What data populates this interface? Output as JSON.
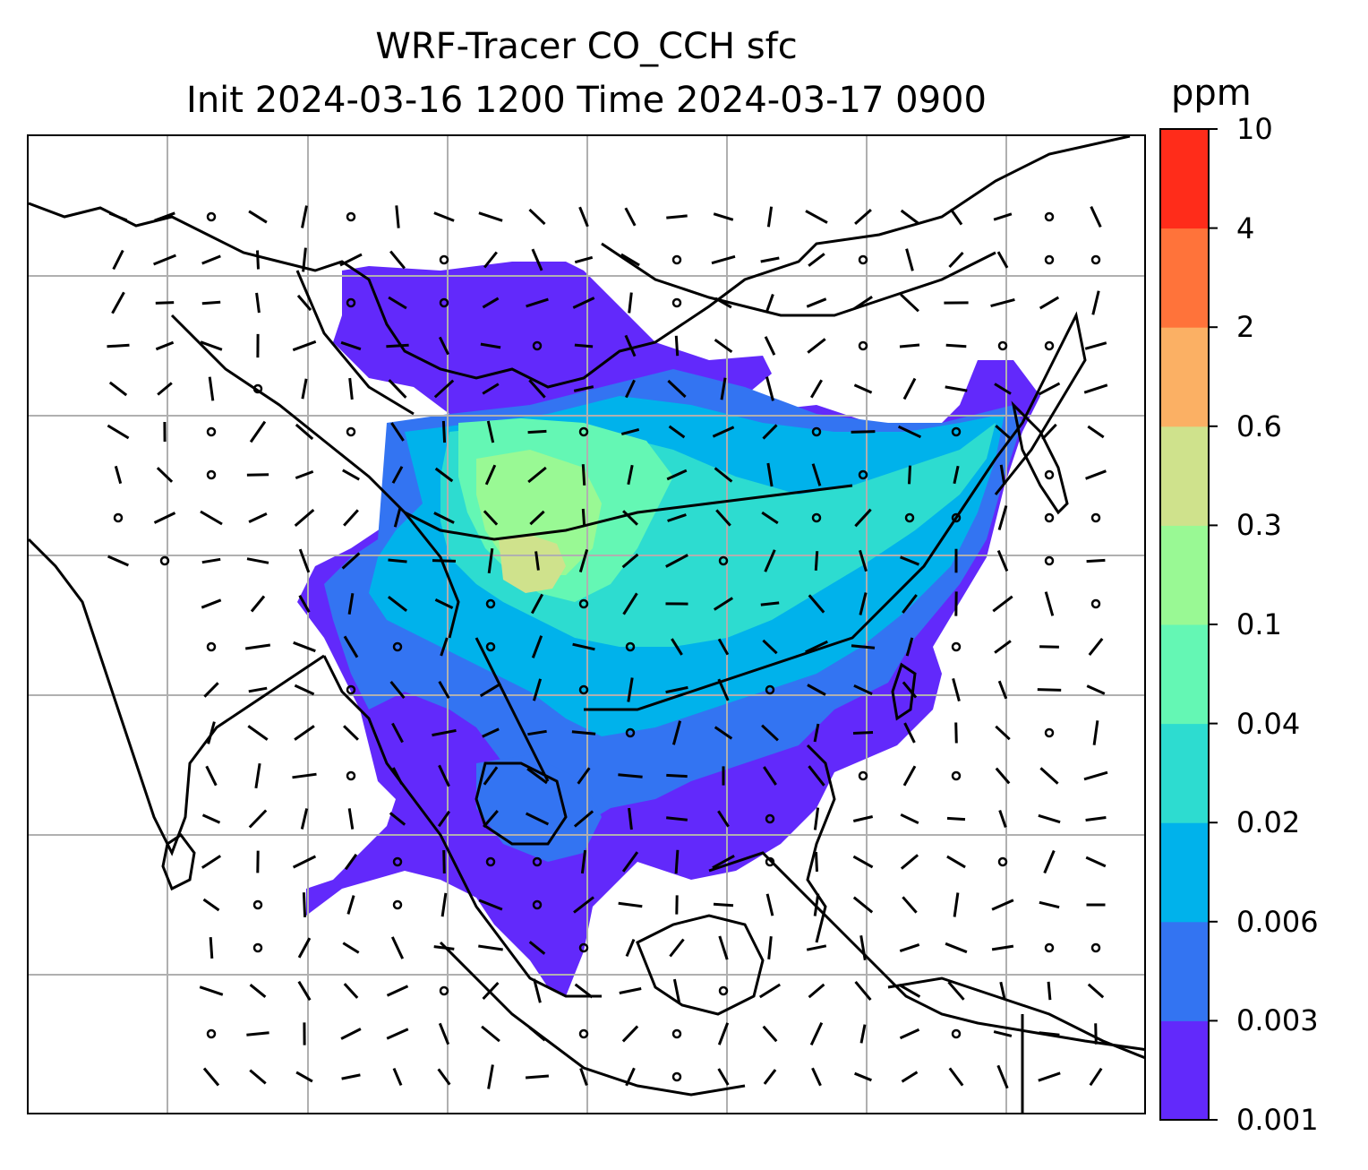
{
  "chart_data": {
    "type": "map",
    "title_line1": "WRF-Tracer CO_CCH sfc",
    "title_line2": "Init 2024-03-16 1200 Time 2024-03-17 0900",
    "colorbar": {
      "unit": "ppm",
      "levels": [
        "0.001",
        "0.003",
        "0.006",
        "0.02",
        "0.04",
        "0.1",
        "0.3",
        "0.6",
        "2",
        "4",
        "10"
      ],
      "colors": [
        "#6229fb",
        "#3374f2",
        "#00b2eb",
        "#2ddcd0",
        "#64f7b4",
        "#99f994",
        "#cfe28c",
        "#fbb064",
        "#ff733a",
        "#ff2c1a"
      ]
    },
    "grid": true,
    "overlays": [
      "coastlines",
      "country-borders",
      "wind-barbs"
    ]
  }
}
